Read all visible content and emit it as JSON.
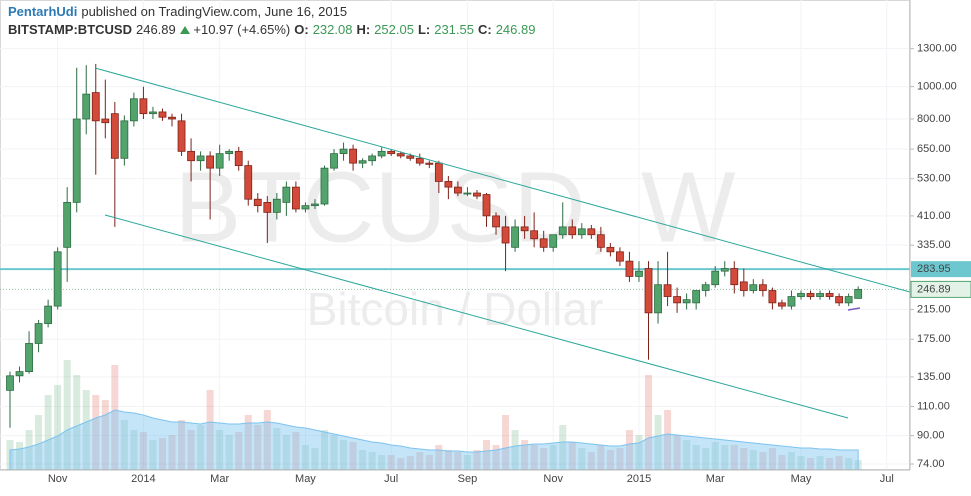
{
  "header": {
    "author": "PentarhUdi",
    "published": "published on TradingView.com, June 16, 2015",
    "symbol": "BITSTAMP:BTCUSD",
    "last": "246.89",
    "change": "+10.97 (+4.65%)",
    "o_label": "O:",
    "o": "232.08",
    "h_label": "H:",
    "h": "252.05",
    "l_label": "L:",
    "l": "231.55",
    "c_label": "C:",
    "c": "246.89"
  },
  "chart_data": {
    "type": "candlestick",
    "watermark": "BTCUSD, W",
    "watermark_sub": "Bitcoin / Dollar",
    "categories": [
      null,
      null,
      null,
      null,
      null,
      "Nov",
      null,
      null,
      null,
      null,
      null,
      null,
      null,
      null,
      "2014",
      null,
      null,
      null,
      null,
      null,
      null,
      null,
      "Mar",
      null,
      null,
      null,
      null,
      null,
      null,
      null,
      null,
      "May",
      null,
      null,
      null,
      null,
      null,
      null,
      null,
      null,
      "Jul",
      null,
      null,
      null,
      null,
      null,
      null,
      null,
      "Sep",
      null,
      null,
      null,
      null,
      null,
      null,
      null,
      null,
      "Nov",
      null,
      null,
      null,
      null,
      null,
      null,
      null,
      null,
      "2015",
      null,
      null,
      null,
      null,
      null,
      null,
      null,
      "Mar",
      null,
      null,
      null,
      null,
      null,
      null,
      null,
      null,
      "May",
      null,
      null,
      null,
      null,
      null,
      null,
      null,
      null,
      "Jul"
    ],
    "open": [
      123,
      136,
      140,
      170,
      195,
      220,
      330,
      450,
      800,
      960,
      800,
      830,
      610,
      790,
      920,
      830,
      840,
      810,
      790,
      640,
      600,
      620,
      570,
      630,
      640,
      580,
      460,
      450,
      420,
      450,
      500,
      430,
      440,
      445,
      570,
      630,
      650,
      590,
      600,
      620,
      640,
      630,
      620,
      610,
      590,
      590,
      520,
      500,
      480,
      480,
      475,
      410,
      380,
      330,
      380,
      370,
      350,
      330,
      360,
      380,
      360,
      375,
      360,
      330,
      320,
      300,
      270,
      285,
      210,
      255,
      235,
      225,
      225,
      245,
      255,
      280,
      285,
      260,
      245,
      255,
      245,
      225,
      220,
      235,
      240,
      235,
      240,
      235,
      225,
      232.08,
      null,
      null,
      null
    ],
    "high": [
      140,
      145,
      185,
      200,
      230,
      330,
      500,
      1140,
      1160,
      1170,
      1050,
      900,
      820,
      960,
      1000,
      870,
      860,
      830,
      830,
      700,
      640,
      640,
      670,
      650,
      660,
      600,
      480,
      470,
      480,
      520,
      520,
      450,
      460,
      580,
      650,
      680,
      670,
      610,
      630,
      660,
      650,
      640,
      630,
      630,
      600,
      600,
      540,
      520,
      500,
      490,
      480,
      420,
      410,
      400,
      410,
      420,
      370,
      360,
      450,
      400,
      390,
      385,
      380,
      340,
      330,
      320,
      300,
      300,
      300,
      320,
      250,
      240,
      245,
      260,
      290,
      300,
      300,
      285,
      265,
      265,
      250,
      230,
      245,
      245,
      245,
      245,
      245,
      240,
      240,
      252.05,
      null,
      null,
      null
    ],
    "low": [
      95,
      130,
      138,
      160,
      190,
      215,
      260,
      420,
      720,
      545,
      700,
      380,
      580,
      760,
      800,
      800,
      790,
      760,
      620,
      520,
      560,
      400,
      540,
      600,
      560,
      440,
      420,
      340,
      400,
      410,
      420,
      420,
      430,
      440,
      560,
      600,
      560,
      570,
      580,
      610,
      620,
      610,
      600,
      580,
      570,
      480,
      460,
      470,
      470,
      460,
      380,
      360,
      280,
      320,
      350,
      330,
      320,
      320,
      350,
      350,
      350,
      350,
      320,
      310,
      290,
      260,
      260,
      152,
      195,
      220,
      210,
      215,
      215,
      235,
      250,
      270,
      240,
      235,
      240,
      235,
      215,
      215,
      215,
      230,
      230,
      230,
      230,
      220,
      220,
      231.55,
      null,
      null,
      null
    ],
    "close": [
      136,
      140,
      170,
      195,
      220,
      320,
      450,
      800,
      950,
      790,
      780,
      610,
      790,
      920,
      830,
      840,
      810,
      800,
      640,
      600,
      620,
      570,
      630,
      640,
      580,
      460,
      440,
      420,
      460,
      500,
      430,
      440,
      445,
      570,
      630,
      650,
      590,
      600,
      620,
      640,
      630,
      620,
      610,
      590,
      585,
      520,
      500,
      480,
      480,
      470,
      410,
      380,
      340,
      380,
      370,
      350,
      330,
      360,
      380,
      360,
      375,
      360,
      330,
      320,
      300,
      270,
      280,
      210,
      255,
      235,
      225,
      230,
      245,
      255,
      280,
      285,
      255,
      245,
      255,
      245,
      225,
      220,
      235,
      240,
      235,
      240,
      235,
      225,
      235,
      246.89,
      null,
      null,
      null
    ],
    "volume": [
      30,
      28,
      40,
      55,
      75,
      85,
      110,
      95,
      80,
      75,
      70,
      105,
      50,
      40,
      38,
      30,
      32,
      35,
      50,
      40,
      45,
      80,
      40,
      35,
      38,
      55,
      45,
      60,
      42,
      35,
      38,
      25,
      22,
      40,
      35,
      30,
      28,
      20,
      18,
      15,
      15,
      12,
      14,
      18,
      15,
      25,
      20,
      18,
      15,
      20,
      30,
      25,
      55,
      40,
      30,
      25,
      22,
      25,
      45,
      28,
      22,
      18,
      25,
      20,
      22,
      40,
      35,
      95,
      55,
      60,
      35,
      30,
      25,
      22,
      28,
      25,
      25,
      22,
      20,
      18,
      22,
      15,
      18,
      14,
      12,
      14,
      12,
      14,
      12,
      10,
      null,
      null,
      null
    ],
    "volume_ma": [
      20,
      21,
      23,
      26,
      30,
      34,
      40,
      44,
      48,
      52,
      55,
      60,
      58,
      57,
      55,
      52,
      50,
      48,
      48,
      47,
      46,
      48,
      47,
      46,
      46,
      47,
      47,
      48,
      47,
      45,
      43,
      42,
      40,
      38,
      36,
      34,
      32,
      30,
      28,
      27,
      25,
      24,
      22,
      21,
      20,
      20,
      19,
      19,
      18,
      18,
      19,
      20,
      22,
      24,
      25,
      26,
      26,
      27,
      28,
      28,
      27,
      26,
      25,
      24,
      24,
      26,
      27,
      32,
      34,
      36,
      35,
      34,
      33,
      32,
      31,
      30,
      29,
      28,
      27,
      26,
      25,
      24,
      23,
      22,
      22,
      21,
      21,
      20,
      20,
      20,
      null,
      null,
      null
    ],
    "up_color": "#53a46c",
    "down_color": "#d44a3a",
    "volume_ma_color": "#7cc3ef",
    "log_scale": true,
    "grid": true,
    "ylim": [
      71,
      1380
    ],
    "yticks": [
      {
        "value": 1300,
        "label": "1300.00"
      },
      {
        "value": 1000,
        "label": "1000.00"
      },
      {
        "value": 800,
        "label": "800.00"
      },
      {
        "value": 650,
        "label": "650.00"
      },
      {
        "value": 530,
        "label": "530.00"
      },
      {
        "value": 410,
        "label": "410.00"
      },
      {
        "value": 335,
        "label": "335.00"
      },
      {
        "value": 215,
        "label": "215.00"
      },
      {
        "value": 175,
        "label": "175.00"
      },
      {
        "value": 135,
        "label": "135.00"
      },
      {
        "value": 110,
        "label": "110.00"
      },
      {
        "value": 90,
        "label": "90.00"
      },
      {
        "value": 74,
        "label": "74.00"
      }
    ],
    "hline": 283.95,
    "hline_color": "#6cc7cf"
  }
}
